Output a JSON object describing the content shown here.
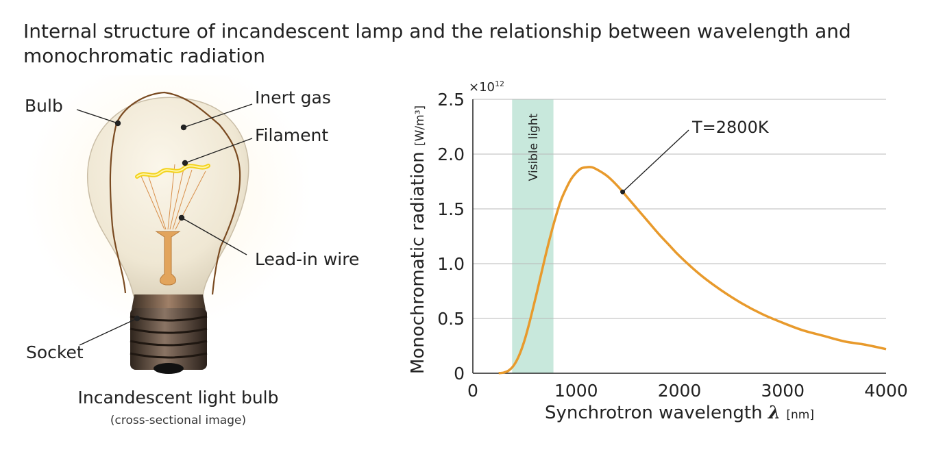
{
  "title": "Internal structure of incandescent lamp and the relationship between wavelength and monochromatic radiation",
  "bulb": {
    "labels": {
      "bulb": "Bulb",
      "inert_gas": "Inert gas",
      "filament": "Filament",
      "lead_in_wire": "Lead-in wire",
      "socket": "Socket"
    },
    "caption": "Incandescent light bulb",
    "caption_sub": "(cross-sectional image)"
  },
  "chart_data": {
    "type": "line",
    "ylabel": "Monochromatic radiation",
    "ylabel_unit": "[W/m³]",
    "xlabel": "Synchrotron wavelength",
    "xlabel_symbol": "λ",
    "xlabel_unit": "[nm]",
    "y_scale_note": "×10",
    "y_scale_exponent": "12",
    "xlim": [
      0,
      4000
    ],
    "ylim": [
      0,
      2.5
    ],
    "x_ticks": [
      "0",
      "1000",
      "2000",
      "3000",
      "4000"
    ],
    "y_ticks": [
      "0",
      "0.5",
      "1.0",
      "1.5",
      "2.0",
      "2.5"
    ],
    "grid": "horizontal",
    "visible_band": {
      "label": "Visible light",
      "x_range": [
        380,
        780
      ],
      "color": "#c8e8dc"
    },
    "series": [
      {
        "name": "T=2800K",
        "color": "#e89a2c",
        "x": [
          250,
          300,
          350,
          400,
          450,
          500,
          550,
          600,
          650,
          700,
          750,
          800,
          850,
          900,
          950,
          1000,
          1050,
          1100,
          1150,
          1200,
          1300,
          1400,
          1500,
          1600,
          1700,
          1800,
          1900,
          2000,
          2200,
          2400,
          2600,
          2800,
          3000,
          3200,
          3400,
          3600,
          3800,
          4000
        ],
        "y": [
          0.001,
          0.006,
          0.027,
          0.077,
          0.167,
          0.3,
          0.47,
          0.66,
          0.86,
          1.06,
          1.25,
          1.42,
          1.57,
          1.68,
          1.77,
          1.83,
          1.87,
          1.88,
          1.88,
          1.86,
          1.8,
          1.71,
          1.6,
          1.49,
          1.38,
          1.27,
          1.17,
          1.07,
          0.9,
          0.76,
          0.64,
          0.54,
          0.46,
          0.39,
          0.34,
          0.29,
          0.26,
          0.22
        ]
      }
    ]
  }
}
